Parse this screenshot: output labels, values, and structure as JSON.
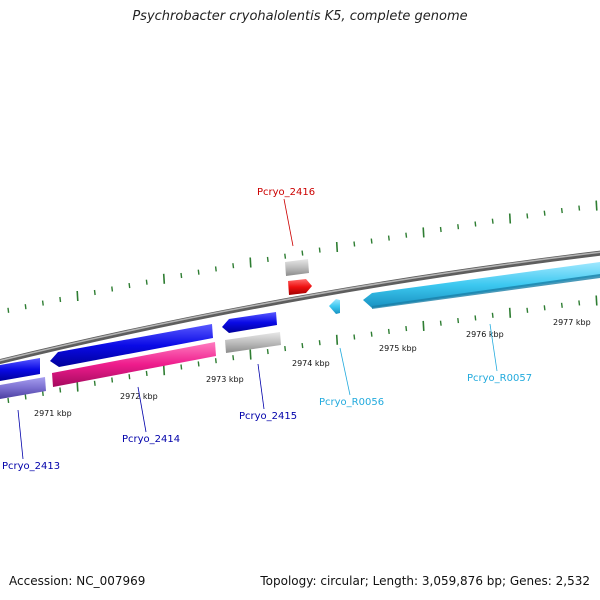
{
  "title": "Psychrobacter cryohalolentis K5, complete genome",
  "footer": {
    "accession": "Accession: NC_007969",
    "summary": "Topology: circular; Length: 3,059,876 bp; Genes: 2,532"
  },
  "scale_labels": [
    "2971 kbp",
    "2972 kbp",
    "2973 kbp",
    "2974 kbp",
    "2975 kbp",
    "2976 kbp",
    "2977 kbp"
  ],
  "gene_labels": [
    {
      "name": "Pcryo_2413",
      "color": "#0000aa"
    },
    {
      "name": "Pcryo_2414",
      "color": "#0000aa"
    },
    {
      "name": "Pcryo_2415",
      "color": "#0000aa"
    },
    {
      "name": "Pcryo_2416",
      "color": "#cc0000"
    },
    {
      "name": "Pcryo_R0056",
      "color": "#22aadd"
    },
    {
      "name": "Pcryo_R0057",
      "color": "#22aadd"
    }
  ],
  "colors": {
    "cds_blue": "#0a0ae6",
    "cds_slate": "#7b6fd0",
    "cds_magenta": "#ee1c8c",
    "cds_gray": "#bdbdbd",
    "cds_red": "#ee1010",
    "rna_cyan": "#3cc8f0",
    "tick_green": "#2e7d32",
    "backbone": "#8a8a8a"
  }
}
